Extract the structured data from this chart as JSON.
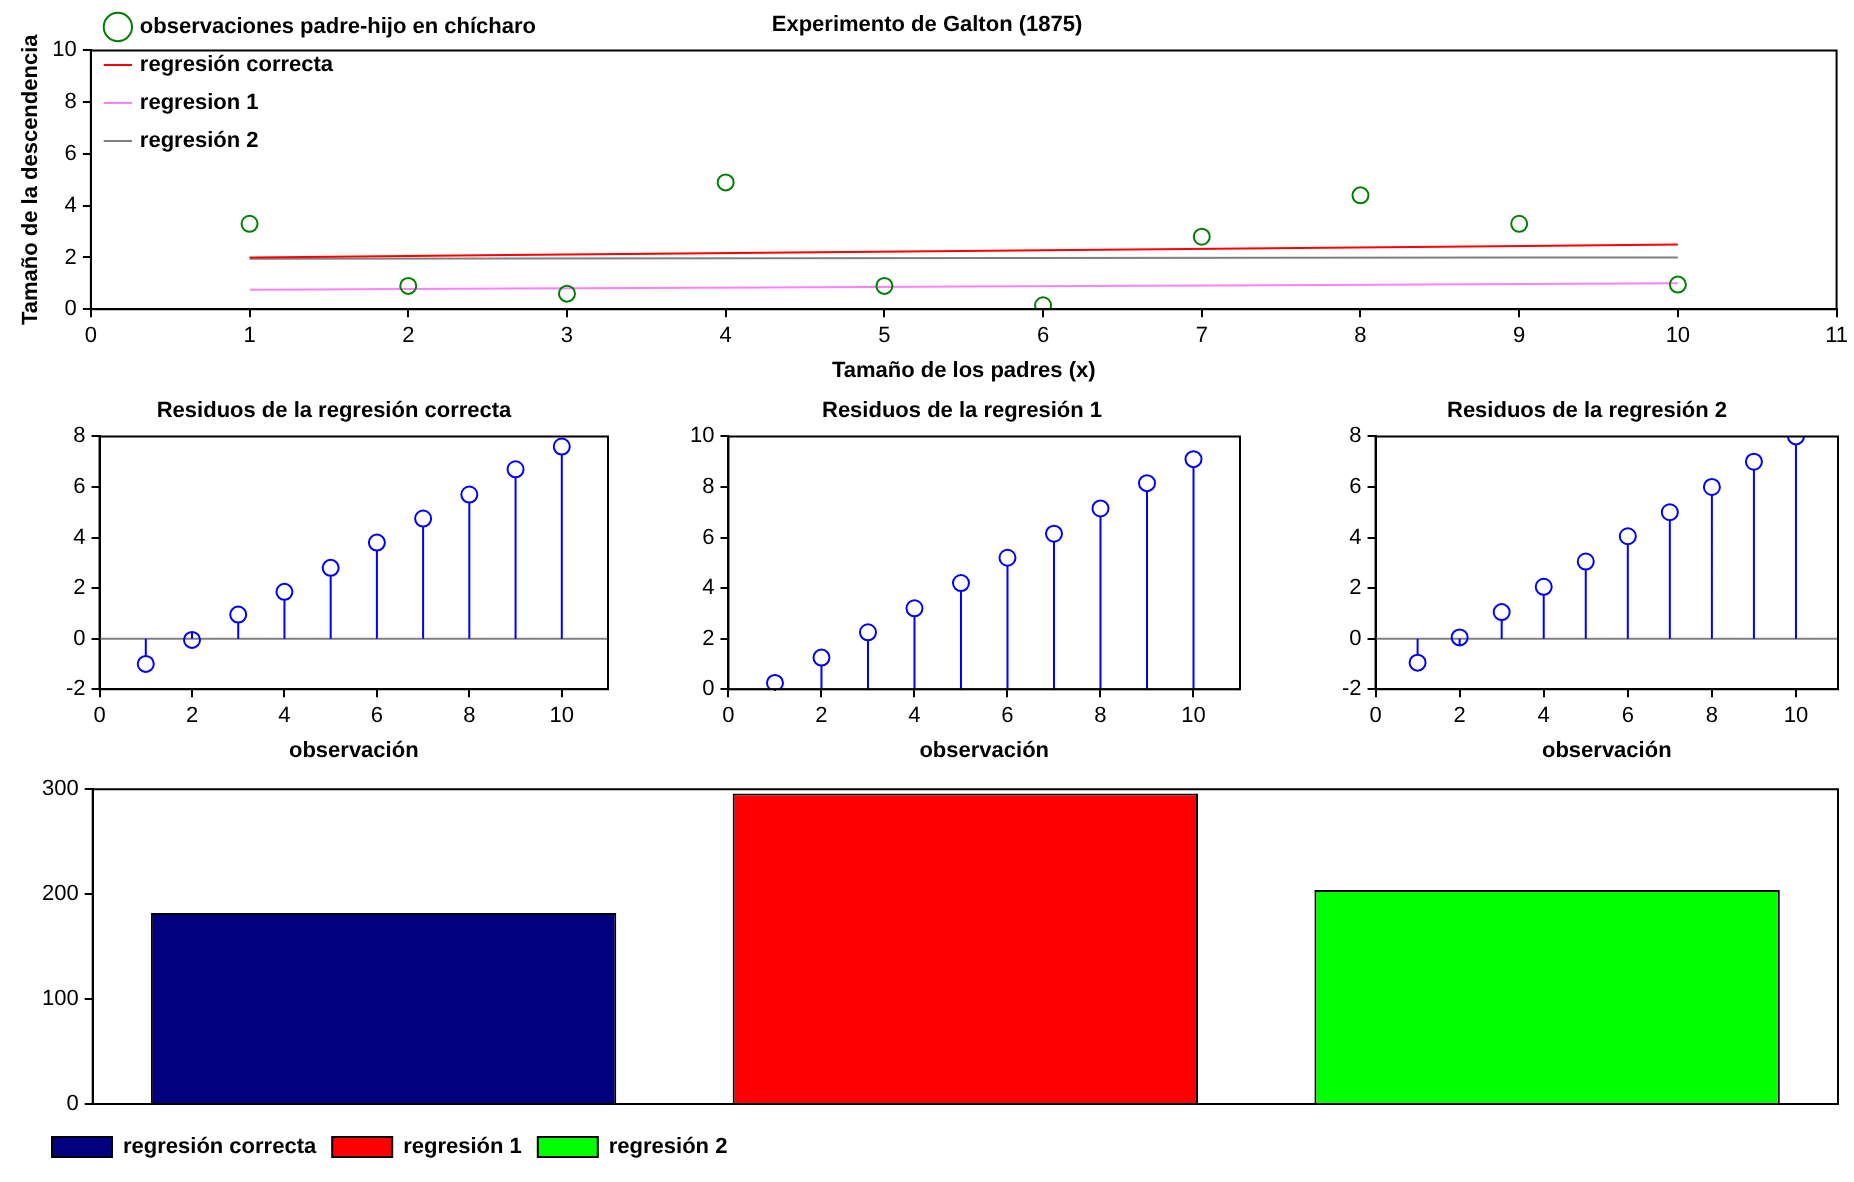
{
  "chart_data": [
    {
      "type": "scatter",
      "title": "Experimento de Galton (1875)",
      "xlabel": "Tamaño de los padres (x)",
      "ylabel": "Tamaño de la descendencia",
      "xlim": [
        0,
        11
      ],
      "xticks": [
        0,
        1,
        2,
        3,
        4,
        5,
        6,
        7,
        8,
        9,
        10,
        11
      ],
      "ylim": [
        0,
        10
      ],
      "yticks": [
        0,
        2,
        4,
        6,
        8,
        10
      ],
      "legend": "top left",
      "series": [
        {
          "name": "observaciones padre-hijo en chícharo",
          "type": "scatter",
          "marker": "circle",
          "color": "#008000",
          "x": [
            1,
            2,
            3,
            4,
            5,
            6,
            7,
            8,
            9,
            10
          ],
          "values": [
            3.3,
            0.9,
            0.6,
            4.9,
            0.9,
            0.15,
            2.8,
            4.4,
            3.3,
            0.95
          ]
        },
        {
          "name": "regresión correcta",
          "type": "line",
          "color": "#ff0000",
          "x": [
            1,
            10
          ],
          "values": [
            2.0,
            2.5
          ]
        },
        {
          "name": "regresion 1",
          "type": "line",
          "color": "#ff80ff",
          "x": [
            1,
            10
          ],
          "values": [
            0.75,
            1.0
          ]
        },
        {
          "name": "regresión 2",
          "type": "line",
          "color": "#808080",
          "x": [
            1,
            10
          ],
          "values": [
            1.95,
            2.0
          ]
        }
      ]
    },
    {
      "type": "lollipop",
      "title": "Residuos de la regresión correcta",
      "xlabel": "observación",
      "xlim": [
        0,
        11
      ],
      "xticks": [
        0,
        2,
        4,
        6,
        8,
        10
      ],
      "ylim": [
        -2,
        8
      ],
      "yticks": [
        -2,
        0,
        2,
        4,
        6,
        8
      ],
      "marker": "circle",
      "series": [
        {
          "color": "#0000ff",
          "x": [
            1,
            2,
            3,
            4,
            5,
            6,
            7,
            8,
            9,
            10
          ],
          "values": [
            -1.0,
            -0.05,
            0.95,
            1.85,
            2.8,
            3.8,
            4.75,
            5.7,
            6.7,
            7.6
          ]
        }
      ]
    },
    {
      "type": "lollipop",
      "title": "Residuos de la regresión 1",
      "xlabel": "observación",
      "xlim": [
        0,
        11
      ],
      "xticks": [
        0,
        2,
        4,
        6,
        8,
        10
      ],
      "ylim": [
        0,
        10
      ],
      "yticks": [
        0,
        2,
        4,
        6,
        8,
        10
      ],
      "marker": "circle",
      "series": [
        {
          "color": "#0000ff",
          "x": [
            1,
            2,
            3,
            4,
            5,
            6,
            7,
            8,
            9,
            10
          ],
          "values": [
            0.25,
            1.25,
            2.25,
            3.2,
            4.2,
            5.2,
            6.15,
            7.15,
            8.15,
            9.1
          ]
        }
      ]
    },
    {
      "type": "lollipop",
      "title": "Residuos de la regresión 2",
      "xlabel": "observación",
      "xlim": [
        0,
        11
      ],
      "xticks": [
        0,
        2,
        4,
        6,
        8,
        10
      ],
      "ylim": [
        -2,
        8
      ],
      "yticks": [
        -2,
        0,
        2,
        4,
        6,
        8
      ],
      "marker": "circle",
      "series": [
        {
          "color": "#0000ff",
          "x": [
            1,
            2,
            3,
            4,
            5,
            6,
            7,
            8,
            9,
            10
          ],
          "values": [
            -0.95,
            0.05,
            1.05,
            2.05,
            3.05,
            4.05,
            5.0,
            6.0,
            7.0,
            8.0
          ]
        }
      ]
    },
    {
      "type": "bar",
      "categories": [
        null,
        null,
        null
      ],
      "stacked": true,
      "ylim": [
        0,
        300
      ],
      "yticks": [
        0,
        100,
        200,
        300
      ],
      "tick_labels": "y",
      "legend": "bottom left",
      "series": [
        {
          "name": "regresión correcta",
          "color": "#000080",
          "values": [
            182,
            null,
            null
          ]
        },
        {
          "name": "regresión 1",
          "color": "#ff0000",
          "values": [
            null,
            296,
            null
          ]
        },
        {
          "name": "regresión 2",
          "color": "#00ff00",
          "values": [
            null,
            null,
            204
          ]
        }
      ]
    }
  ]
}
